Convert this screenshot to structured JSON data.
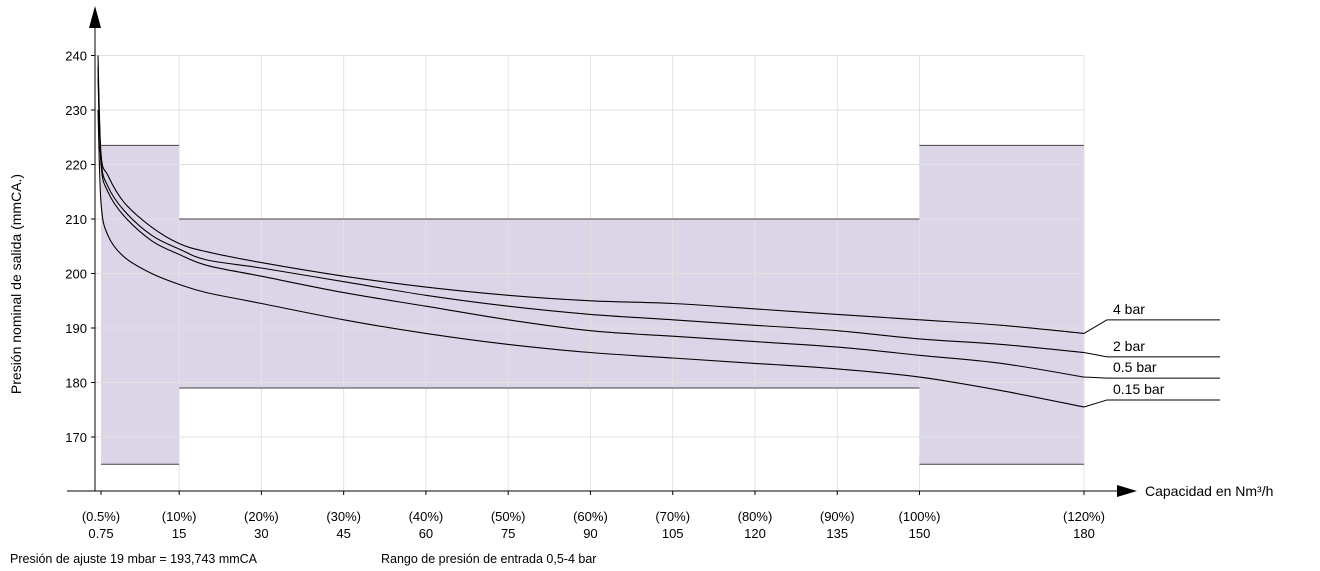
{
  "chart_data": {
    "type": "line",
    "xlabel": "Capacidad en Nm³/h",
    "ylabel": "Presión nominal de salida (mmCA.)",
    "xlim": [
      0,
      185
    ],
    "ylim": [
      165,
      240
    ],
    "grid": true,
    "x_ticks": [
      {
        "value": 0.75,
        "pct": "(0.5%)",
        "label": "0.75"
      },
      {
        "value": 15,
        "pct": "(10%)",
        "label": "15"
      },
      {
        "value": 30,
        "pct": "(20%)",
        "label": "30"
      },
      {
        "value": 45,
        "pct": "(30%)",
        "label": "45"
      },
      {
        "value": 60,
        "pct": "(40%)",
        "label": "60"
      },
      {
        "value": 75,
        "pct": "(50%)",
        "label": "75"
      },
      {
        "value": 90,
        "pct": "(60%)",
        "label": "90"
      },
      {
        "value": 105,
        "pct": "(70%)",
        "label": "105"
      },
      {
        "value": 120,
        "pct": "(80%)",
        "label": "120"
      },
      {
        "value": 135,
        "pct": "(90%)",
        "label": "135"
      },
      {
        "value": 150,
        "pct": "(100%)",
        "label": "150"
      },
      {
        "value": 180,
        "pct": "(120%)",
        "label": "180"
      }
    ],
    "y_ticks": [
      "170",
      "180",
      "190",
      "200",
      "210",
      "220",
      "230",
      "240"
    ],
    "bands": [
      {
        "x0": 0.75,
        "x1": 15,
        "y0": 165,
        "y1": 223.5
      },
      {
        "x0": 15,
        "x1": 150,
        "y0": 179,
        "y1": 210
      },
      {
        "x0": 150,
        "x1": 180,
        "y0": 165,
        "y1": 223.5
      }
    ],
    "band_color": "#dcd4e7",
    "series": [
      {
        "name": "4 bar",
        "label_y": 191.5,
        "x": [
          0.2,
          0.75,
          2,
          5,
          10,
          15,
          20,
          30,
          45,
          60,
          75,
          90,
          105,
          120,
          135,
          150,
          165,
          180
        ],
        "y": [
          240,
          222,
          218,
          213,
          208.5,
          205.5,
          204,
          202,
          199.5,
          197.5,
          196,
          195,
          194.5,
          193.5,
          192.5,
          191.5,
          190.5,
          189
        ]
      },
      {
        "name": "2 bar",
        "label_y": 184.7,
        "x": [
          0.2,
          0.75,
          2,
          5,
          10,
          15,
          20,
          30,
          45,
          60,
          75,
          90,
          105,
          120,
          135,
          150,
          165,
          180
        ],
        "y": [
          238,
          221,
          216,
          211.5,
          207,
          204.5,
          202.5,
          201,
          198.5,
          196,
          194,
          192.5,
          191.5,
          190.5,
          189.5,
          188,
          187,
          185.5
        ]
      },
      {
        "name": "0.5 bar",
        "label_y": 180.8,
        "x": [
          0.2,
          0.75,
          2,
          5,
          10,
          15,
          20,
          30,
          45,
          60,
          75,
          90,
          105,
          120,
          135,
          150,
          165,
          180
        ],
        "y": [
          236,
          220,
          215,
          210.5,
          206,
          203.5,
          201.5,
          199.5,
          196.5,
          194,
          191.5,
          189.5,
          188.5,
          187.5,
          186.5,
          185,
          183.5,
          181
        ]
      },
      {
        "name": "0.15 bar",
        "label_y": 176.8,
        "x": [
          0.2,
          0.75,
          2,
          5,
          10,
          15,
          20,
          30,
          45,
          60,
          75,
          90,
          105,
          120,
          135,
          150,
          165,
          180
        ],
        "y": [
          230,
          213,
          207,
          203,
          200,
          198,
          196.5,
          194.5,
          191.5,
          189,
          187,
          185.5,
          184.5,
          183.5,
          182.5,
          181,
          178.5,
          175.5
        ]
      }
    ]
  },
  "footnotes": {
    "setpoint": "Presión de ajuste 19 mbar = 193,743 mmCA",
    "inlet_range": "Rango de presión de entrada 0,5-4 bar"
  }
}
